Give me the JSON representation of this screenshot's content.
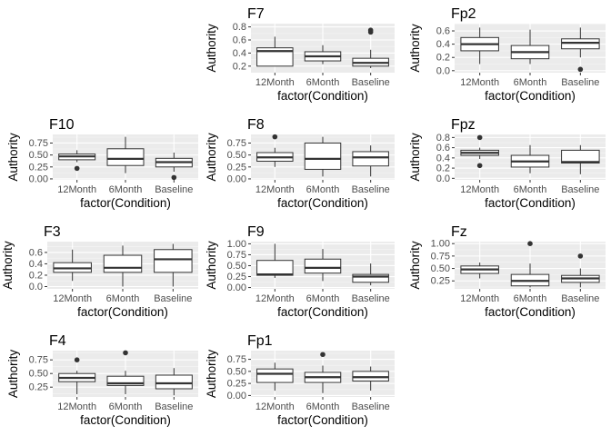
{
  "chart_data": [
    {
      "type": "box",
      "title": "F7",
      "categories": [
        "12Month",
        "6Month",
        "Baseline"
      ],
      "xlabel": "factor(Condition)",
      "ylabel": "Authority",
      "ylim": [
        0.1,
        0.85
      ],
      "yticks": [
        0.2,
        0.4,
        0.6,
        0.8
      ],
      "yticklabels": [
        "0.2",
        "0.4",
        "0.6",
        "0.8"
      ],
      "boxes": [
        {
          "min": 0.2,
          "q1": 0.2,
          "median": 0.43,
          "q3": 0.48,
          "max": 0.65,
          "outliers": []
        },
        {
          "min": 0.23,
          "q1": 0.28,
          "median": 0.35,
          "q3": 0.42,
          "max": 0.52,
          "outliers": []
        },
        {
          "min": 0.17,
          "q1": 0.2,
          "median": 0.25,
          "q3": 0.32,
          "max": 0.45,
          "outliers": [
            0.72,
            0.75
          ]
        }
      ]
    },
    {
      "type": "box",
      "title": "Fp2",
      "categories": [
        "12Month",
        "6Month",
        "Baseline"
      ],
      "xlabel": "factor(Condition)",
      "ylabel": "Authority",
      "ylim": [
        -0.03,
        0.71
      ],
      "yticks": [
        0.0,
        0.2,
        0.4,
        0.6
      ],
      "yticklabels": [
        "0.0",
        "0.2",
        "0.4",
        "0.6"
      ],
      "boxes": [
        {
          "min": 0.1,
          "q1": 0.3,
          "median": 0.4,
          "q3": 0.5,
          "max": 0.65,
          "outliers": []
        },
        {
          "min": 0.1,
          "q1": 0.18,
          "median": 0.28,
          "q3": 0.38,
          "max": 0.62,
          "outliers": []
        },
        {
          "min": 0.2,
          "q1": 0.33,
          "median": 0.42,
          "q3": 0.48,
          "max": 0.65,
          "outliers": [
            0.02
          ]
        }
      ]
    },
    {
      "type": "box",
      "title": "F10",
      "categories": [
        "12Month",
        "6Month",
        "Baseline"
      ],
      "xlabel": "factor(Condition)",
      "ylabel": "Authority",
      "ylim": [
        -0.02,
        0.93
      ],
      "yticks": [
        0.0,
        0.25,
        0.5,
        0.75
      ],
      "yticklabels": [
        "0.00",
        "0.25",
        "0.50",
        "0.75"
      ],
      "boxes": [
        {
          "min": 0.35,
          "q1": 0.4,
          "median": 0.47,
          "q3": 0.52,
          "max": 0.6,
          "outliers": [
            0.22
          ]
        },
        {
          "min": 0.12,
          "q1": 0.28,
          "median": 0.42,
          "q3": 0.63,
          "max": 0.88,
          "outliers": []
        },
        {
          "min": 0.15,
          "q1": 0.25,
          "median": 0.35,
          "q3": 0.43,
          "max": 0.55,
          "outliers": [
            0.03
          ]
        }
      ]
    },
    {
      "type": "box",
      "title": "F8",
      "categories": [
        "12Month",
        "6Month",
        "Baseline"
      ],
      "xlabel": "factor(Condition)",
      "ylabel": "Authority",
      "ylim": [
        -0.02,
        0.93
      ],
      "yticks": [
        0.0,
        0.25,
        0.5,
        0.75
      ],
      "yticklabels": [
        "0.00",
        "0.25",
        "0.50",
        "0.75"
      ],
      "boxes": [
        {
          "min": 0.25,
          "q1": 0.37,
          "median": 0.45,
          "q3": 0.55,
          "max": 0.65,
          "outliers": [
            0.88
          ]
        },
        {
          "min": 0.05,
          "q1": 0.2,
          "median": 0.42,
          "q3": 0.75,
          "max": 0.88,
          "outliers": []
        },
        {
          "min": 0.05,
          "q1": 0.27,
          "median": 0.45,
          "q3": 0.57,
          "max": 0.7,
          "outliers": []
        }
      ]
    },
    {
      "type": "box",
      "title": "Fpz",
      "categories": [
        "12Month",
        "6Month",
        "Baseline"
      ],
      "xlabel": "factor(Condition)",
      "ylabel": "Authority",
      "ylim": [
        -0.03,
        0.86
      ],
      "yticks": [
        0.0,
        0.2,
        0.4,
        0.6,
        0.8
      ],
      "yticklabels": [
        "0.0",
        "0.2",
        "0.4",
        "0.6",
        "0.8"
      ],
      "boxes": [
        {
          "min": 0.38,
          "q1": 0.45,
          "median": 0.5,
          "q3": 0.55,
          "max": 0.6,
          "outliers": [
            0.8,
            0.25
          ]
        },
        {
          "min": 0.1,
          "q1": 0.22,
          "median": 0.33,
          "q3": 0.45,
          "max": 0.65,
          "outliers": []
        },
        {
          "min": 0.08,
          "q1": 0.3,
          "median": 0.32,
          "q3": 0.55,
          "max": 0.65,
          "outliers": []
        }
      ]
    },
    {
      "type": "box",
      "title": "F3",
      "categories": [
        "12Month",
        "6Month",
        "Baseline"
      ],
      "xlabel": "factor(Condition)",
      "ylabel": "Authority",
      "ylim": [
        -0.04,
        0.79
      ],
      "yticks": [
        0.0,
        0.2,
        0.4,
        0.6
      ],
      "yticklabels": [
        "0.0",
        "0.2",
        "0.4",
        "0.6"
      ],
      "boxes": [
        {
          "min": 0.1,
          "q1": 0.25,
          "median": 0.32,
          "q3": 0.42,
          "max": 0.65,
          "outliers": []
        },
        {
          "min": 0.0,
          "q1": 0.25,
          "median": 0.33,
          "q3": 0.55,
          "max": 0.72,
          "outliers": []
        },
        {
          "min": 0.0,
          "q1": 0.25,
          "median": 0.48,
          "q3": 0.65,
          "max": 0.75,
          "outliers": []
        }
      ]
    },
    {
      "type": "box",
      "title": "F9",
      "categories": [
        "12Month",
        "6Month",
        "Baseline"
      ],
      "xlabel": "factor(Condition)",
      "ylabel": "Authority",
      "ylim": [
        -0.03,
        1.05
      ],
      "yticks": [
        0.0,
        0.25,
        0.5,
        0.75,
        1.0
      ],
      "yticklabels": [
        "0.00",
        "0.25",
        "0.50",
        "0.75",
        "1.00"
      ],
      "boxes": [
        {
          "min": 0.22,
          "q1": 0.28,
          "median": 0.3,
          "q3": 0.62,
          "max": 1.0,
          "outliers": []
        },
        {
          "min": 0.15,
          "q1": 0.33,
          "median": 0.45,
          "q3": 0.65,
          "max": 0.88,
          "outliers": []
        },
        {
          "min": 0.05,
          "q1": 0.12,
          "median": 0.25,
          "q3": 0.3,
          "max": 0.55,
          "outliers": []
        }
      ]
    },
    {
      "type": "box",
      "title": "Fz",
      "categories": [
        "12Month",
        "6Month",
        "Baseline"
      ],
      "xlabel": "factor(Condition)",
      "ylabel": "Authority",
      "ylim": [
        0.09,
        1.04
      ],
      "yticks": [
        0.25,
        0.5,
        0.75,
        1.0
      ],
      "yticklabels": [
        "0.25",
        "0.50",
        "0.75",
        "1.00"
      ],
      "boxes": [
        {
          "min": 0.3,
          "q1": 0.4,
          "median": 0.48,
          "q3": 0.55,
          "max": 0.62,
          "outliers": []
        },
        {
          "min": 0.12,
          "q1": 0.15,
          "median": 0.25,
          "q3": 0.38,
          "max": 0.6,
          "outliers": [
            1.0
          ]
        },
        {
          "min": 0.12,
          "q1": 0.22,
          "median": 0.3,
          "q3": 0.36,
          "max": 0.5,
          "outliers": [
            0.75
          ]
        }
      ]
    },
    {
      "type": "box",
      "title": "F4",
      "categories": [
        "12Month",
        "6Month",
        "Baseline"
      ],
      "xlabel": "factor(Condition)",
      "ylabel": "Authority",
      "ylim": [
        0.07,
        0.92
      ],
      "yticks": [
        0.25,
        0.5,
        0.75
      ],
      "yticklabels": [
        "0.25",
        "0.50",
        "0.75"
      ],
      "boxes": [
        {
          "min": 0.12,
          "q1": 0.35,
          "median": 0.42,
          "q3": 0.5,
          "max": 0.55,
          "outliers": [
            0.75
          ]
        },
        {
          "min": 0.12,
          "q1": 0.28,
          "median": 0.32,
          "q3": 0.45,
          "max": 0.55,
          "outliers": [
            0.88
          ]
        },
        {
          "min": 0.1,
          "q1": 0.22,
          "median": 0.32,
          "q3": 0.47,
          "max": 0.6,
          "outliers": []
        }
      ]
    },
    {
      "type": "box",
      "title": "Fp1",
      "categories": [
        "12Month",
        "6Month",
        "Baseline"
      ],
      "xlabel": "factor(Condition)",
      "ylabel": "Authority",
      "ylim": [
        -0.03,
        0.93
      ],
      "yticks": [
        0.0,
        0.25,
        0.5,
        0.75
      ],
      "yticklabels": [
        "0.00",
        "0.25",
        "0.50",
        "0.75"
      ],
      "boxes": [
        {
          "min": 0.1,
          "q1": 0.27,
          "median": 0.45,
          "q3": 0.55,
          "max": 0.68,
          "outliers": []
        },
        {
          "min": 0.05,
          "q1": 0.27,
          "median": 0.38,
          "q3": 0.48,
          "max": 0.62,
          "outliers": [
            0.85
          ]
        },
        {
          "min": 0.1,
          "q1": 0.3,
          "median": 0.38,
          "q3": 0.5,
          "max": 0.6,
          "outliers": []
        }
      ]
    }
  ],
  "colors": {
    "panel_bg": "#EBEBEB",
    "grid_major": "#FFFFFF",
    "grid_minor": "#F5F5F5",
    "box_fill": "#FFFFFF",
    "box_line": "#333333",
    "outlier": "#333333",
    "tick_text": "#4D4D4D",
    "title_text": "#000000"
  }
}
